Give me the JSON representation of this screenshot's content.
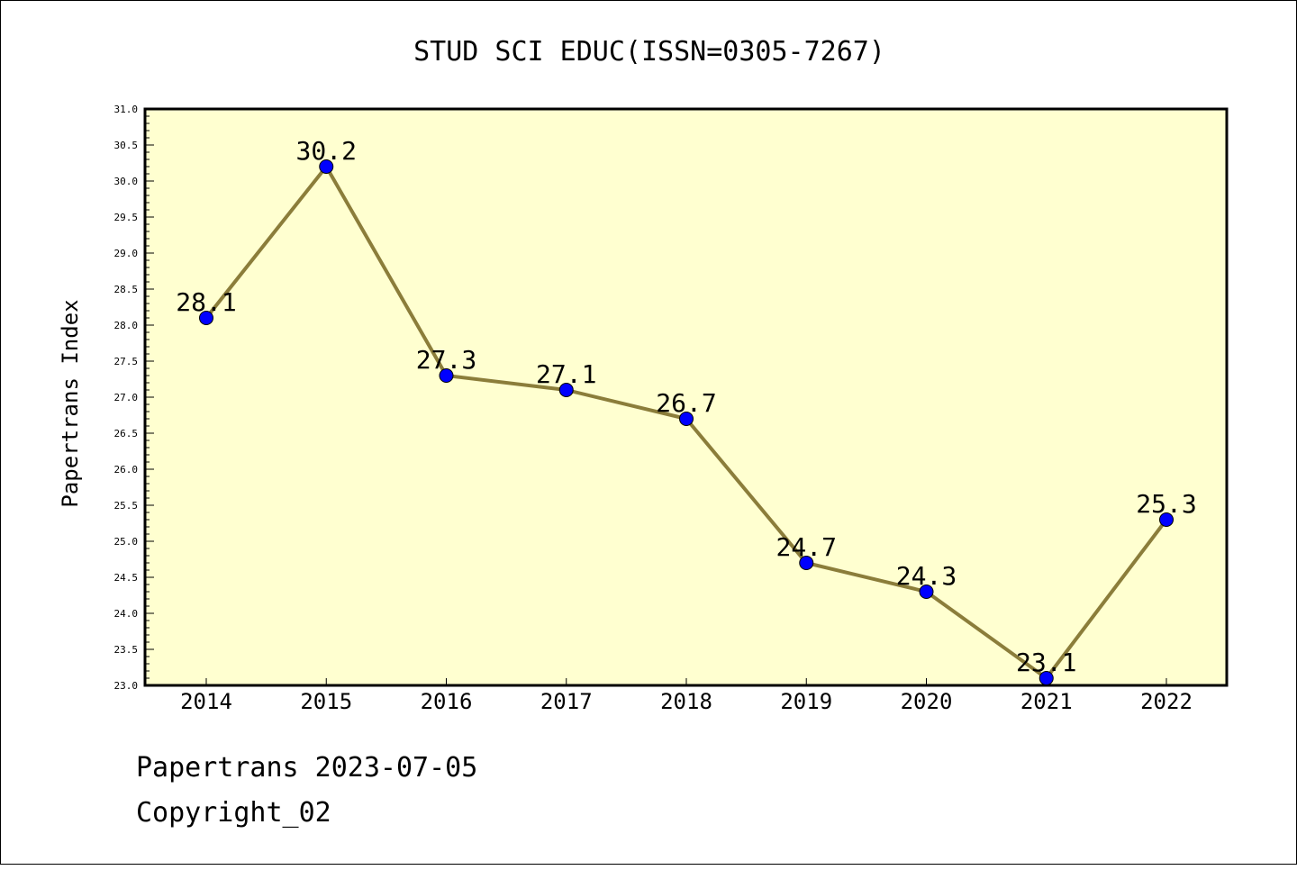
{
  "chart_data": {
    "type": "line",
    "title": "STUD SCI EDUC(ISSN=0305-7267)",
    "xlabel": "",
    "ylabel": "Papertrans Index",
    "categories": [
      "2014",
      "2015",
      "2016",
      "2017",
      "2018",
      "2019",
      "2020",
      "2021",
      "2022"
    ],
    "series": [
      {
        "values": [
          28.1,
          30.2,
          27.3,
          27.1,
          26.7,
          24.7,
          24.3,
          23.1,
          25.3
        ],
        "labels": [
          "28.1",
          "30.2",
          "27.3",
          "27.1",
          "26.7",
          "24.7",
          "24.3",
          "23.1",
          "25.3"
        ],
        "line_color": "#8b7d3a",
        "marker_color": "#0000ff"
      }
    ],
    "ylim": [
      23.0,
      31.0
    ],
    "yticks": [
      "23.0",
      "23.5",
      "24.0",
      "24.5",
      "25.0",
      "25.5",
      "26.0",
      "26.5",
      "27.0",
      "27.5",
      "28.0",
      "28.5",
      "29.0",
      "29.5",
      "30.0",
      "30.5",
      "31.0"
    ],
    "grid": false,
    "plot_background": "#ffffd0"
  },
  "footer": {
    "line1": "Papertrans 2023-07-05",
    "line2": "Copyright_02"
  }
}
